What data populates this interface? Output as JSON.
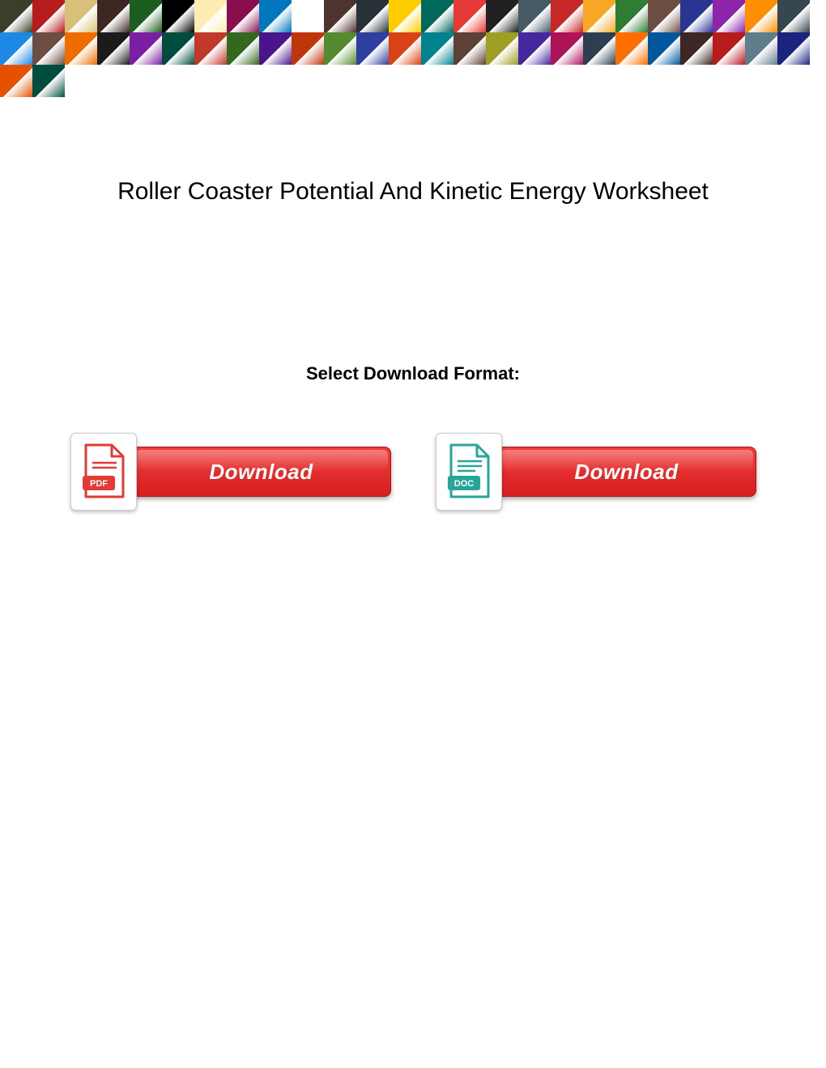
{
  "banner": {
    "tile_count": 52,
    "tile_colors": [
      "#3a3f2a",
      "#b71c1c",
      "#d8c07a",
      "#3e2723",
      "#1b5e20",
      "#000000",
      "#ffecb3",
      "#880e4f",
      "#0277bd",
      "#ffffff",
      "#4e342e",
      "#263238",
      "#ffcc00",
      "#00695c",
      "#e53935",
      "#212121",
      "#455a64",
      "#c62828",
      "#f9a825",
      "#2e7d32",
      "#6d4c41",
      "#283593",
      "#8e24aa",
      "#ff8f00",
      "#37474f",
      "#1e88e5",
      "#6d4c41",
      "#ef6c00",
      "#1b1b1b",
      "#7b1fa2",
      "#004d40",
      "#c0392b",
      "#33691e",
      "#4a148c",
      "#bf360c",
      "#558b2f",
      "#303f9f",
      "#d84315",
      "#00838f",
      "#5d4037",
      "#9e9d24",
      "#4527a0",
      "#ad1457",
      "#2c3e50",
      "#ff6f00",
      "#01579b",
      "#3e2723",
      "#b71c1c",
      "#607d8b",
      "#1a237e",
      "#e65100",
      "#004d40"
    ]
  },
  "title": "Roller Coaster Potential And Kinetic Energy Worksheet",
  "subtitle": "Select Download Format:",
  "downloads": {
    "pdf": {
      "badge_label": "PDF",
      "icon_color": "#e53935",
      "button_label": "Download"
    },
    "doc": {
      "badge_label": "DOC",
      "icon_color": "#26a69a",
      "button_label": "Download"
    }
  },
  "colors": {
    "button_gradient_top": "#f23b3b",
    "button_gradient_bottom": "#d61f1f",
    "button_text": "#ffffff",
    "page_bg": "#ffffff",
    "title_text": "#000000"
  }
}
